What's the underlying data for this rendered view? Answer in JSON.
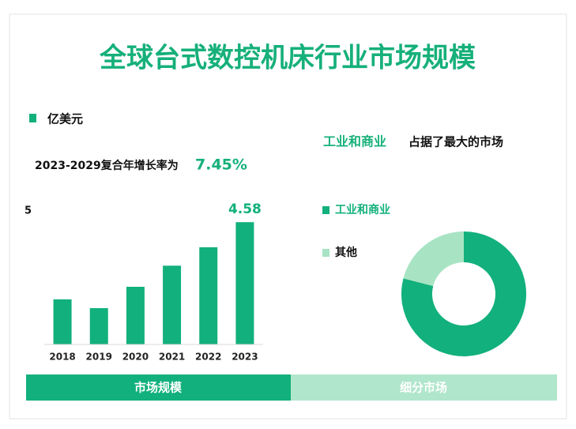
{
  "title": "全球台式数控机床行业市场规模",
  "cagr": {
    "label": "2023-2029复合年增长率为",
    "value": "7.45%"
  },
  "tabs": [
    "市场规模",
    "细分市场"
  ],
  "chart_data": [
    {
      "type": "bar",
      "categories": [
        "2018",
        "2019",
        "2020",
        "2021",
        "2022",
        "2023"
      ],
      "series": [
        {
          "name": "亿美元",
          "color": "#12b07c",
          "values": [
            1.69,
            1.36,
            2.16,
            2.95,
            3.64,
            4.58
          ],
          "value_labels": [
            null,
            null,
            null,
            null,
            null,
            "4.58"
          ]
        }
      ],
      "ylim": [
        0,
        5
      ],
      "yticks": [
        5
      ],
      "grid": false
    },
    {
      "type": "pie",
      "donut": true,
      "title_highlight": "工业和商业",
      "title": "占据了最大的市场",
      "categories": [
        "工业和商业",
        "其他"
      ],
      "values": [
        79,
        21
      ],
      "colors": [
        "#12b07c",
        "#a8e4c4"
      ]
    }
  ]
}
